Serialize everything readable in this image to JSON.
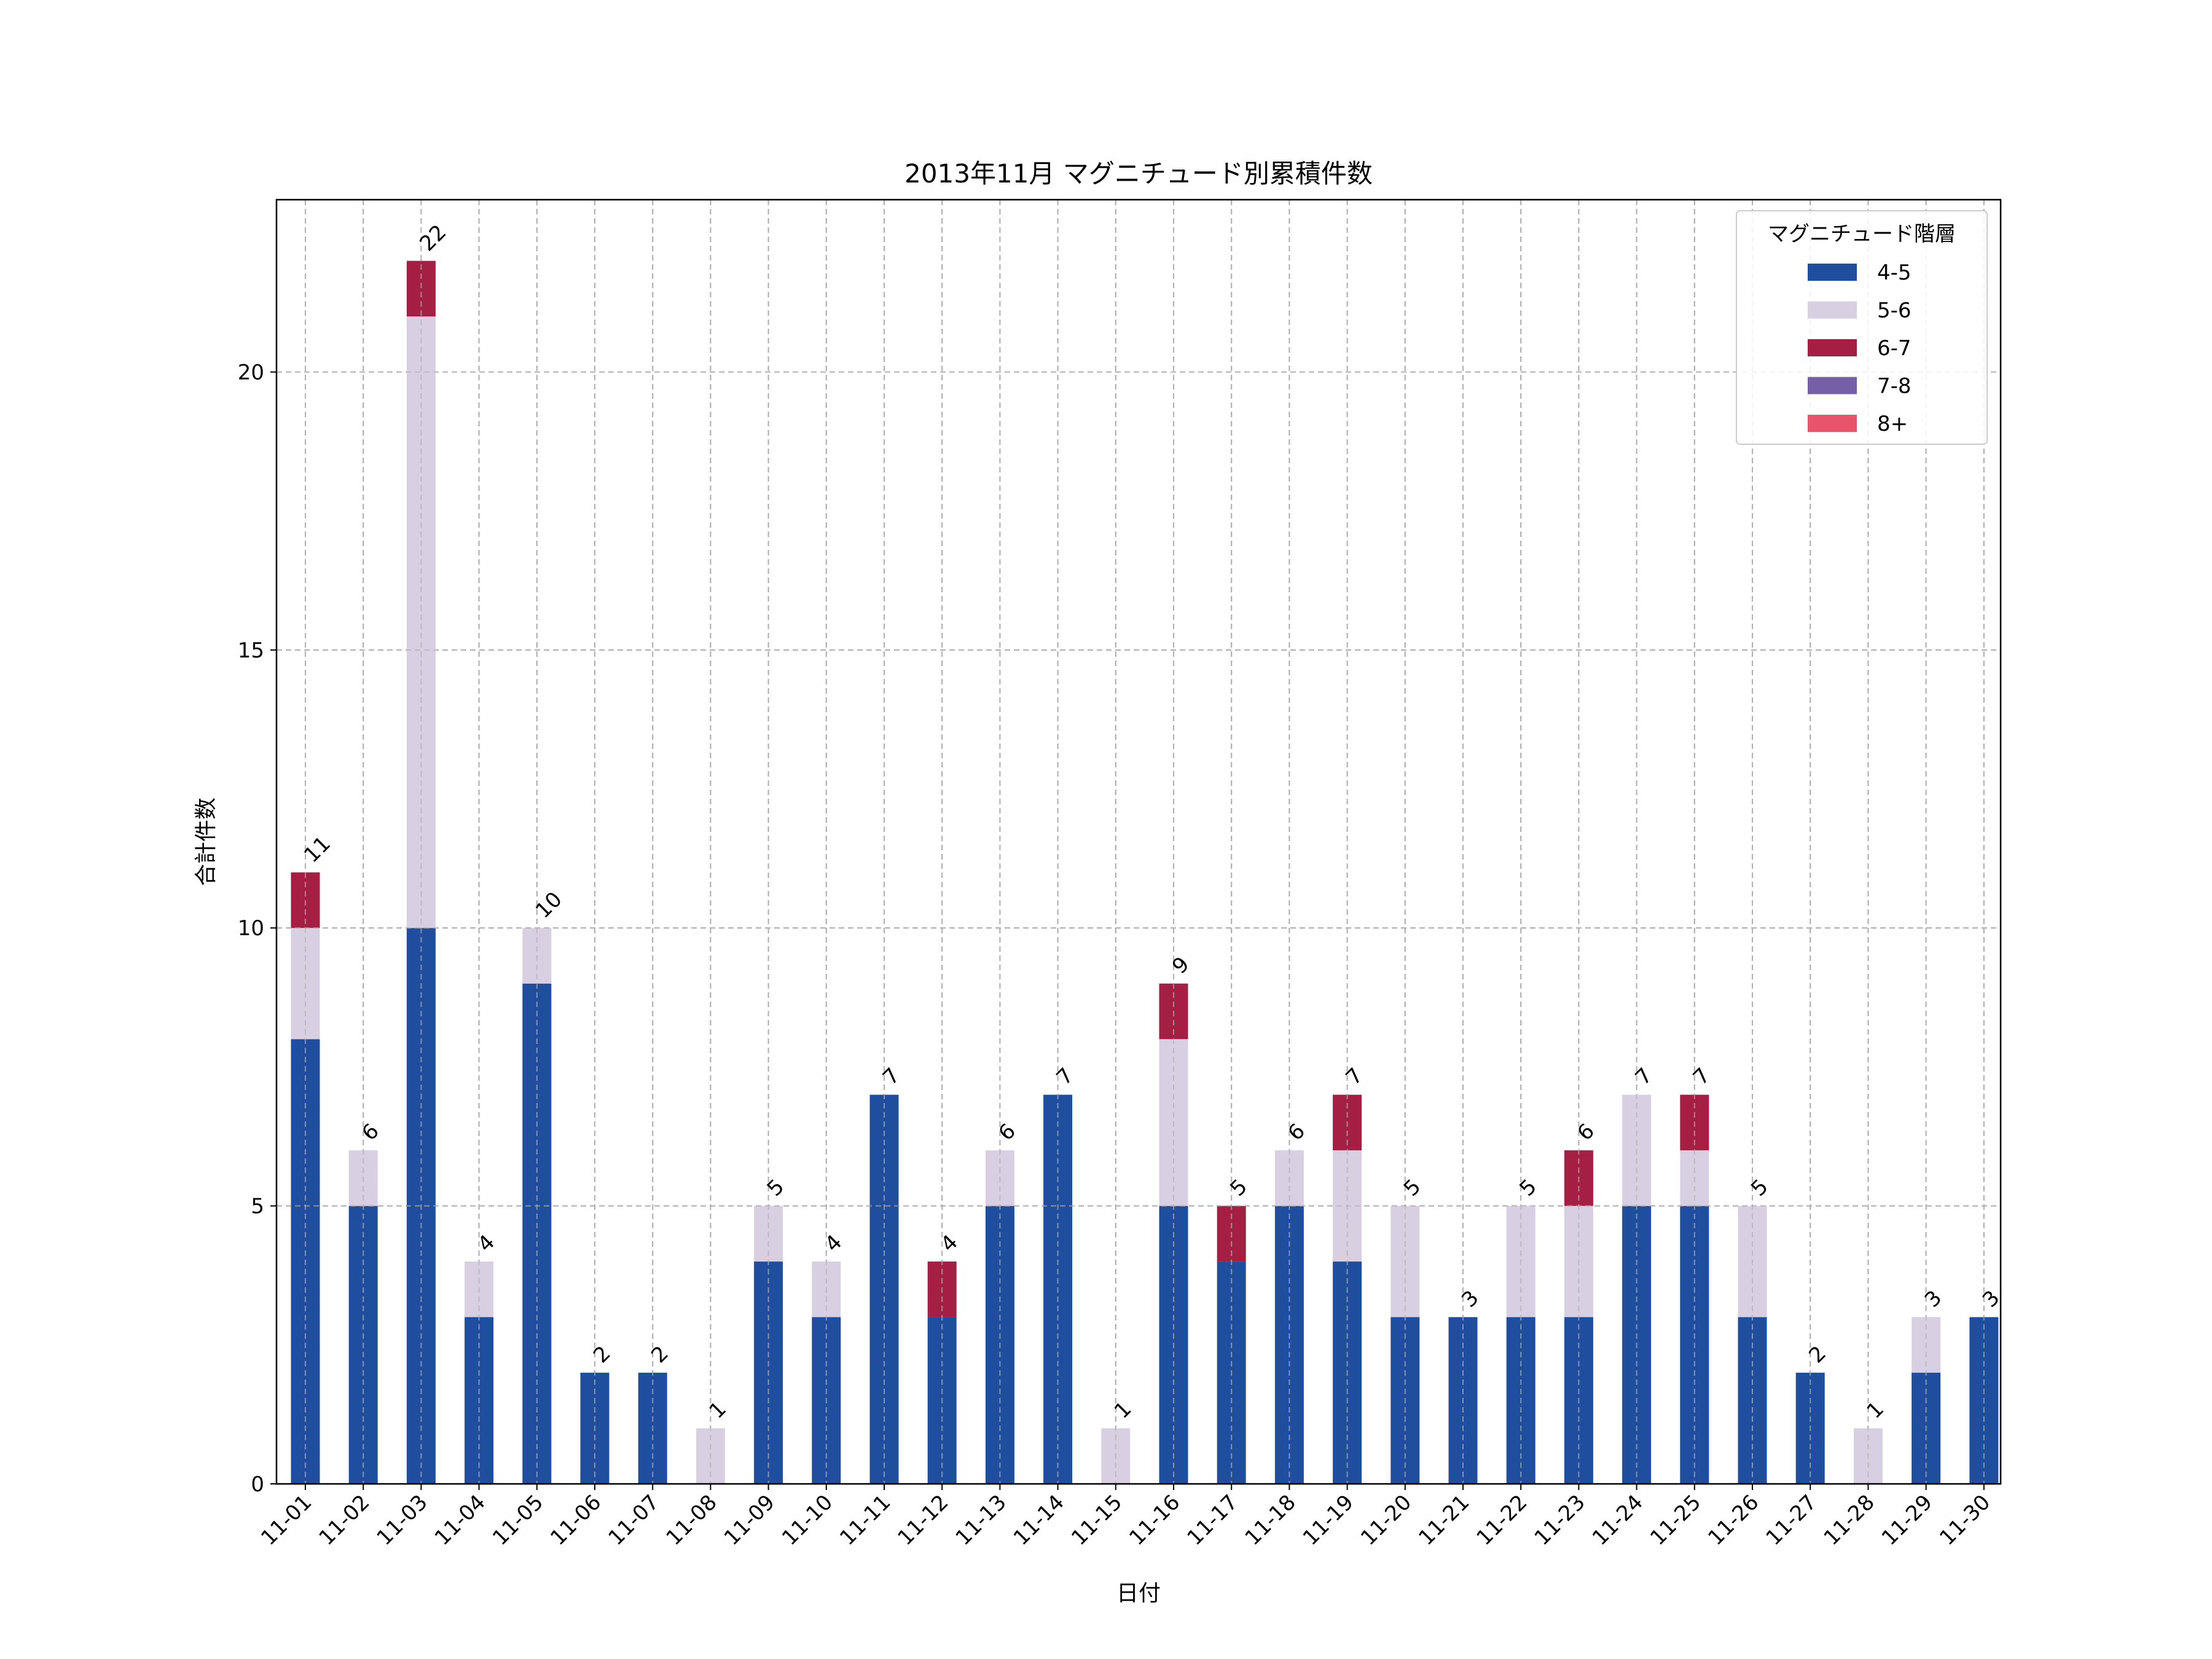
{
  "chart_data": {
    "type": "bar",
    "stacked": true,
    "title": "2013年11月 マグニチュード別累積件数",
    "xlabel": "日付",
    "ylabel": "合計件数",
    "ylim": [
      0,
      23.1
    ],
    "yticks": [
      0,
      5,
      10,
      15,
      20
    ],
    "grid": true,
    "legend_title": "マグニチュード階層",
    "legend_position": "top-right",
    "categories": [
      "11-01",
      "11-02",
      "11-03",
      "11-04",
      "11-05",
      "11-06",
      "11-07",
      "11-08",
      "11-09",
      "11-10",
      "11-11",
      "11-12",
      "11-13",
      "11-14",
      "11-15",
      "11-16",
      "11-17",
      "11-18",
      "11-19",
      "11-20",
      "11-21",
      "11-22",
      "11-23",
      "11-24",
      "11-25",
      "11-26",
      "11-27",
      "11-28",
      "11-29",
      "11-30"
    ],
    "series": [
      {
        "name": "4-5",
        "color": "#1f4e9e",
        "values": [
          8,
          5,
          10,
          3,
          9,
          2,
          2,
          0,
          4,
          3,
          7,
          3,
          5,
          7,
          0,
          5,
          4,
          5,
          4,
          3,
          3,
          3,
          3,
          5,
          5,
          3,
          2,
          0,
          2,
          3
        ]
      },
      {
        "name": "5-6",
        "color": "#d9cfe3",
        "values": [
          2,
          1,
          11,
          1,
          1,
          0,
          0,
          1,
          1,
          1,
          0,
          0,
          1,
          0,
          1,
          3,
          0,
          1,
          2,
          2,
          0,
          2,
          2,
          2,
          1,
          2,
          0,
          1,
          1,
          0
        ]
      },
      {
        "name": "6-7",
        "color": "#a51f45",
        "values": [
          1,
          0,
          1,
          0,
          0,
          0,
          0,
          0,
          0,
          0,
          0,
          1,
          0,
          0,
          0,
          1,
          1,
          0,
          1,
          0,
          0,
          0,
          1,
          0,
          1,
          0,
          0,
          0,
          0,
          0
        ]
      },
      {
        "name": "7-8",
        "color": "#7560a8",
        "values": [
          0,
          0,
          0,
          0,
          0,
          0,
          0,
          0,
          0,
          0,
          0,
          0,
          0,
          0,
          0,
          0,
          0,
          0,
          0,
          0,
          0,
          0,
          0,
          0,
          0,
          0,
          0,
          0,
          0,
          0
        ]
      },
      {
        "name": "8+",
        "color": "#e8556a",
        "values": [
          0,
          0,
          0,
          0,
          0,
          0,
          0,
          0,
          0,
          0,
          0,
          0,
          0,
          0,
          0,
          0,
          0,
          0,
          0,
          0,
          0,
          0,
          0,
          0,
          0,
          0,
          0,
          0,
          0,
          0
        ]
      }
    ],
    "totals": [
      11,
      6,
      22,
      4,
      10,
      2,
      2,
      1,
      5,
      4,
      7,
      4,
      6,
      7,
      1,
      9,
      5,
      6,
      7,
      5,
      3,
      5,
      6,
      7,
      7,
      5,
      2,
      1,
      3,
      3
    ]
  }
}
